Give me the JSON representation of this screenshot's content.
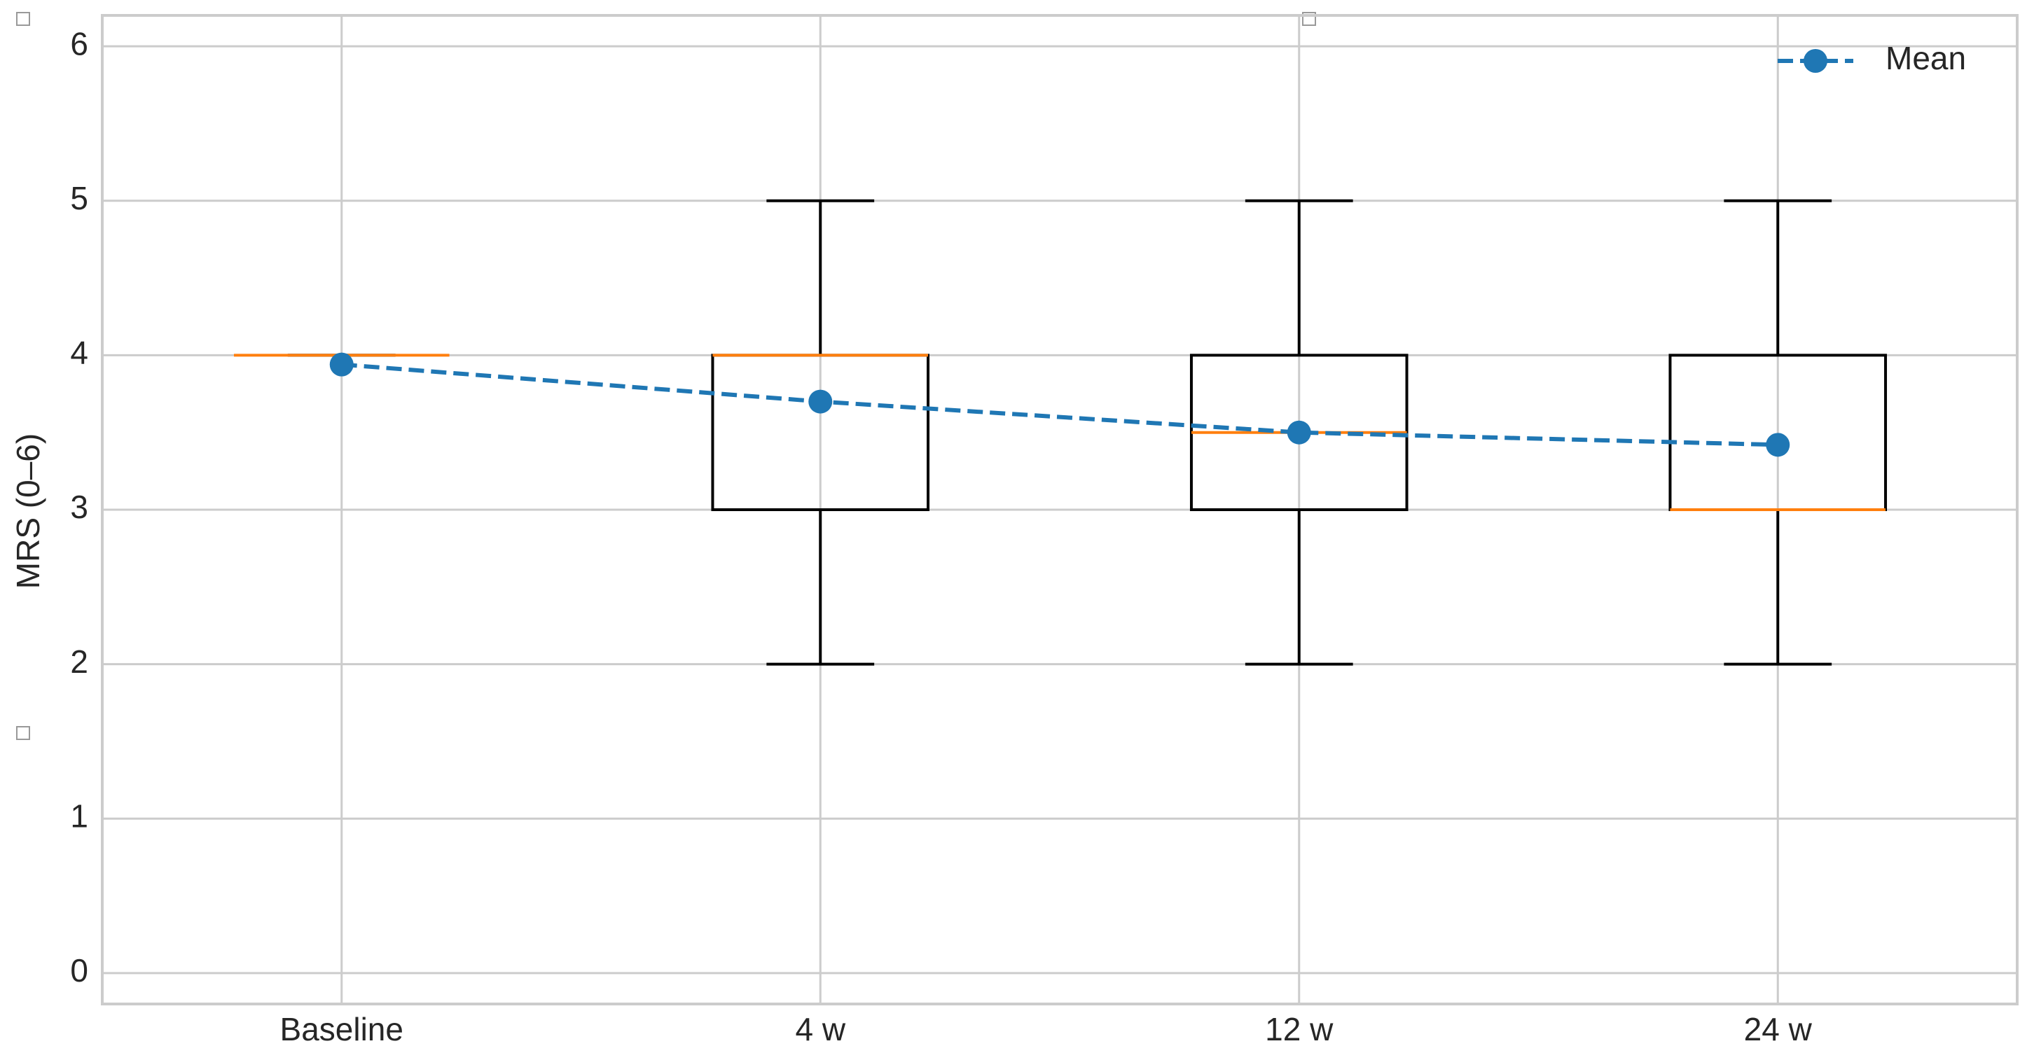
{
  "chart_data": {
    "type": "box",
    "ylabel": "MRS (0–6)",
    "categories": [
      "Baseline",
      "4 w",
      "12 w",
      "24 w"
    ],
    "boxes": {
      "whisker_low": [
        4,
        2,
        2,
        2
      ],
      "q1": [
        4,
        3,
        3,
        3
      ],
      "median": [
        4,
        4,
        3.5,
        3
      ],
      "q3": [
        4,
        4,
        4,
        4
      ],
      "whisker_high": [
        4,
        5,
        5,
        5
      ]
    },
    "box_color": "#000000",
    "median_color": "#ff7f0e",
    "mean": {
      "name": "Mean",
      "color": "#1f77b4",
      "values": [
        3.94,
        3.7,
        3.5,
        3.42
      ]
    },
    "ylim": [
      -0.2,
      6.2
    ],
    "yticks": [
      0,
      1,
      2,
      3,
      4,
      5,
      6
    ],
    "grid": true,
    "legend": "upper right"
  }
}
